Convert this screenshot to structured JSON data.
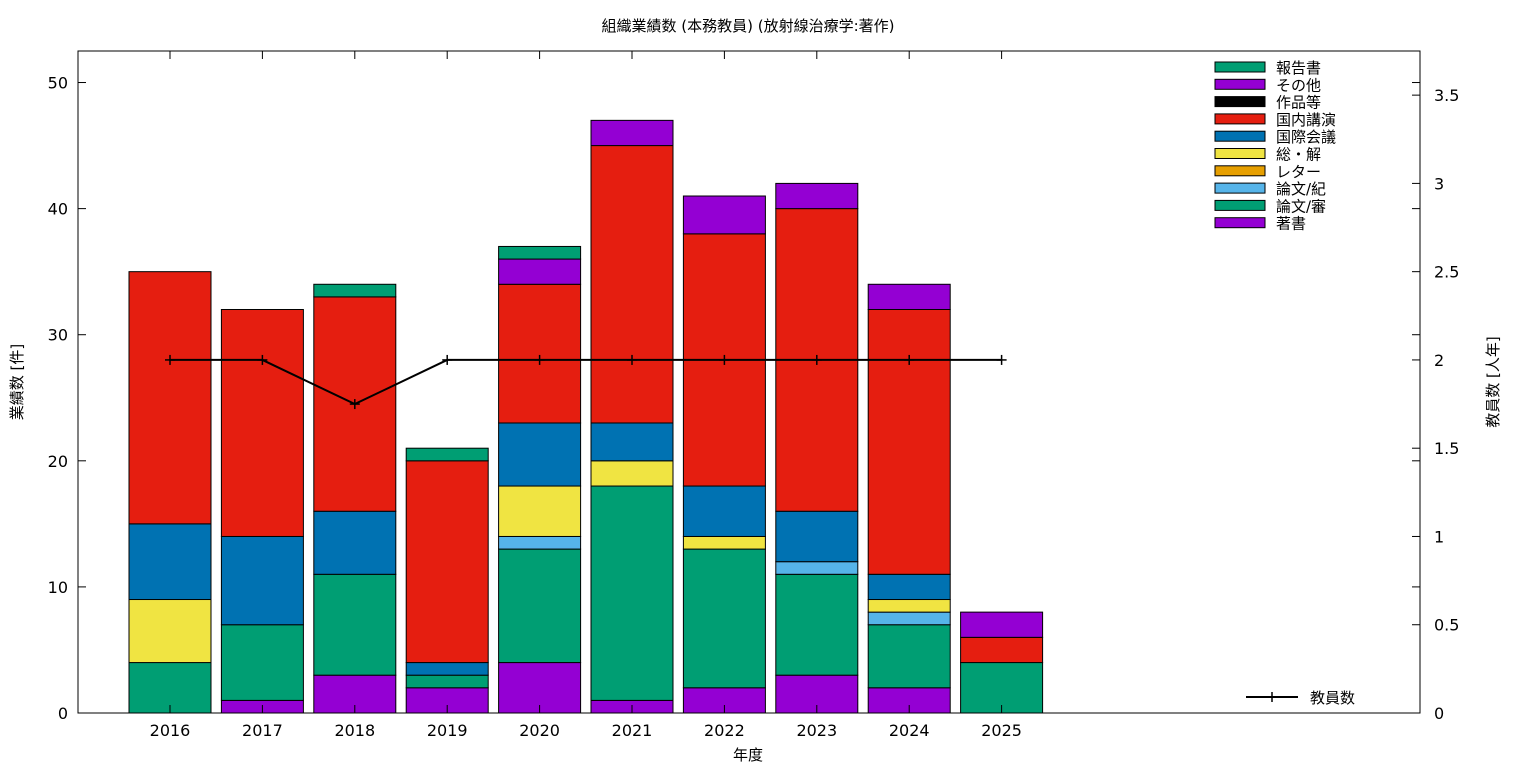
{
  "chart_data": {
    "type": "bar",
    "subtype": "stacked",
    "title": "組織業績数 (本務教員) (放射線治療学:著作)",
    "xlabel": "年度",
    "ylabel": "業績数 [件]",
    "y2label": "教員数 [人年]",
    "ylim": [
      0,
      52.5
    ],
    "y2lim": [
      0,
      3.75
    ],
    "y_ticks": [
      0,
      10,
      20,
      30,
      40,
      50
    ],
    "y2_ticks": [
      "0",
      "0.5",
      "1",
      "1.5",
      "2",
      "2.5",
      "3",
      "3.5"
    ],
    "grid": false,
    "legend_position": "top-right",
    "categories": [
      "2016",
      "2017",
      "2018",
      "2019",
      "2020",
      "2021",
      "2022",
      "2023",
      "2024",
      "2025"
    ],
    "series": [
      {
        "name": "著書",
        "color": "#9400d3",
        "values": [
          0,
          1,
          3,
          2,
          4,
          1,
          2,
          3,
          2,
          0
        ]
      },
      {
        "name": "論文/審",
        "color": "#009e73",
        "values": [
          4,
          6,
          8,
          1,
          9,
          17,
          11,
          8,
          5,
          4
        ]
      },
      {
        "name": "論文/紀",
        "color": "#56b4e9",
        "values": [
          0,
          0,
          0,
          0,
          1,
          0,
          0,
          1,
          1,
          0
        ]
      },
      {
        "name": "レター",
        "color": "#e69f00",
        "values": [
          0,
          0,
          0,
          0,
          0,
          0,
          0,
          0,
          0,
          0
        ]
      },
      {
        "name": "総・解",
        "color": "#f0e442",
        "values": [
          5,
          0,
          0,
          0,
          4,
          2,
          1,
          0,
          1,
          0
        ]
      },
      {
        "name": "国際会議",
        "color": "#0072b2",
        "values": [
          6,
          7,
          5,
          1,
          5,
          3,
          4,
          4,
          2,
          0
        ]
      },
      {
        "name": "国内講演",
        "color": "#e51e10",
        "values": [
          20,
          18,
          17,
          16,
          11,
          22,
          20,
          24,
          21,
          2
        ]
      },
      {
        "name": "作品等",
        "color": "#000000",
        "values": [
          0,
          0,
          0,
          0,
          0,
          0,
          0,
          0,
          0,
          0
        ]
      },
      {
        "name": "その他",
        "color": "#9400d3",
        "values": [
          0,
          0,
          0,
          0,
          2,
          2,
          3,
          2,
          2,
          2
        ]
      },
      {
        "name": "報告書",
        "color": "#009e73",
        "values": [
          0,
          0,
          1,
          1,
          1,
          0,
          0,
          0,
          0,
          0
        ]
      }
    ],
    "line_series": {
      "name": "教員数",
      "axis": "y2",
      "color": "#000000",
      "values": [
        2,
        2,
        1.75,
        2,
        2,
        2,
        2,
        2,
        2,
        2
      ]
    }
  }
}
